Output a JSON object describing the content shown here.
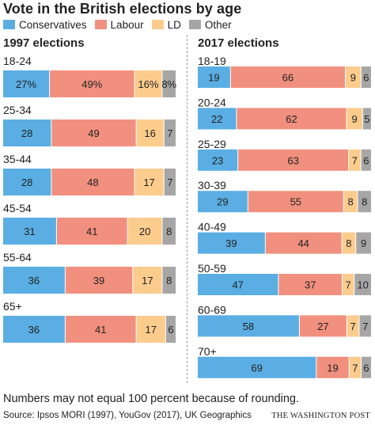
{
  "title": "Vote in the British elections by age",
  "colors": {
    "Conservatives": "#5aaee3",
    "Labour": "#f1907e",
    "LD": "#fccc8d",
    "Other": "#a6a6a6"
  },
  "chart_data": {
    "type": "bar",
    "orientation": "horizontal",
    "stacked": true,
    "legend": [
      "Conservatives",
      "Labour",
      "LD",
      "Other"
    ],
    "legend_position": "top-left",
    "panels": [
      {
        "title": "1997 elections",
        "categories": [
          "18-24",
          "25-34",
          "35-44",
          "45-54",
          "55-64",
          "65+"
        ],
        "series": [
          {
            "name": "Conservatives",
            "values": [
              27,
              28,
              28,
              31,
              36,
              36
            ]
          },
          {
            "name": "Labour",
            "values": [
              49,
              49,
              48,
              41,
              39,
              41
            ]
          },
          {
            "name": "LD",
            "values": [
              16,
              16,
              17,
              20,
              17,
              17
            ]
          },
          {
            "name": "Other",
            "values": [
              8,
              7,
              7,
              8,
              8,
              6
            ]
          }
        ],
        "percent_label_on_first_bar": true
      },
      {
        "title": "2017 elections",
        "categories": [
          "18-19",
          "20-24",
          "25-29",
          "30-39",
          "40-49",
          "50-59",
          "60-69",
          "70+"
        ],
        "series": [
          {
            "name": "Conservatives",
            "values": [
              19,
              22,
              23,
              29,
              39,
              47,
              58,
              69
            ]
          },
          {
            "name": "Labour",
            "values": [
              66,
              62,
              63,
              55,
              44,
              37,
              27,
              19
            ]
          },
          {
            "name": "LD",
            "values": [
              9,
              9,
              7,
              8,
              8,
              7,
              7,
              7
            ]
          },
          {
            "name": "Other",
            "values": [
              6,
              5,
              6,
              8,
              9,
              10,
              7,
              6
            ]
          }
        ],
        "percent_label_on_first_bar": false
      }
    ]
  },
  "footnote": "Numbers may not equal 100 percent because of rounding.",
  "source": "Source: Ipsos MORI (1997), YouGov (2017), UK Geographics",
  "credit": "THE WASHINGTON POST"
}
